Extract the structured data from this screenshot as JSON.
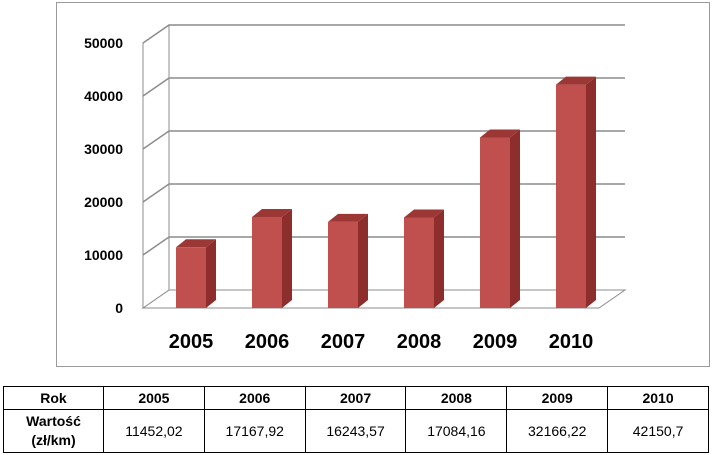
{
  "chart_data": {
    "type": "bar",
    "categories": [
      "2005",
      "2006",
      "2007",
      "2008",
      "2009",
      "2010"
    ],
    "values": [
      11452.02,
      17167.92,
      16243.57,
      17084.16,
      32166.22,
      42150.7
    ],
    "ylim": [
      0,
      50000
    ],
    "yticks": [
      "0",
      "10000",
      "20000",
      "30000",
      "40000",
      "50000"
    ],
    "grid": true,
    "bar_color": "#c0504d",
    "bar_side_color": "#8e2e2c",
    "bar_top_color": "#9b3836"
  },
  "table": {
    "header_label": "Rok",
    "years": [
      "2005",
      "2006",
      "2007",
      "2008",
      "2009",
      "2010"
    ],
    "value_label_line1": "Wartość",
    "value_label_line2": "(zł/km)",
    "values": [
      "11452,02",
      "17167,92",
      "16243,57",
      "17084,16",
      "32166,22",
      "42150,7"
    ]
  }
}
